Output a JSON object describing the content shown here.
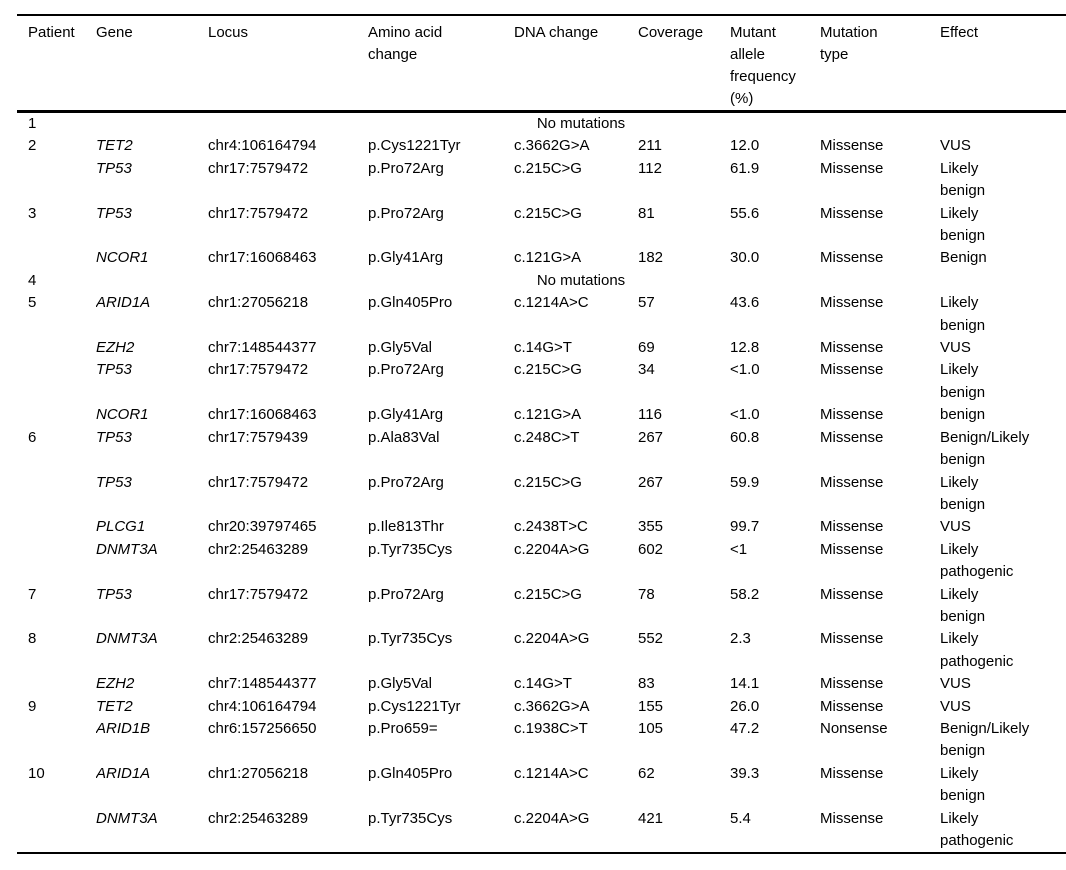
{
  "table": {
    "columns": [
      {
        "key": "patient",
        "label": "Patient"
      },
      {
        "key": "gene",
        "label": "Gene"
      },
      {
        "key": "locus",
        "label": "Locus"
      },
      {
        "key": "amino_acid_change",
        "label": "Amino acid\nchange"
      },
      {
        "key": "dna_change",
        "label": "DNA change"
      },
      {
        "key": "coverage",
        "label": "Coverage"
      },
      {
        "key": "mutant_allele_frequency",
        "label": "Mutant\nallele\nfrequency\n(%)"
      },
      {
        "key": "mutation_type",
        "label": "Mutation\ntype"
      },
      {
        "key": "effect",
        "label": "Effect"
      }
    ],
    "rows": [
      {
        "patient": "1",
        "no_mutations": "No mutations"
      },
      {
        "patient": "2",
        "gene": "TET2",
        "locus": "chr4:106164794",
        "amino_acid_change": "p.Cys1221Tyr",
        "dna_change": "c.3662G>A",
        "coverage": "211",
        "mutant_allele_frequency": "12.0",
        "mutation_type": "Missense",
        "effect": "VUS"
      },
      {
        "patient": "",
        "gene": "TP53",
        "locus": "chr17:7579472",
        "amino_acid_change": "p.Pro72Arg",
        "dna_change": "c.215C>G",
        "coverage": "112",
        "mutant_allele_frequency": "61.9",
        "mutation_type": "Missense",
        "effect": "Likely\nbenign"
      },
      {
        "patient": "3",
        "gene": "TP53",
        "locus": "chr17:7579472",
        "amino_acid_change": "p.Pro72Arg",
        "dna_change": "c.215C>G",
        "coverage": "81",
        "mutant_allele_frequency": "55.6",
        "mutation_type": "Missense",
        "effect": "Likely\nbenign"
      },
      {
        "patient": "",
        "gene": "NCOR1",
        "locus": "chr17:16068463",
        "amino_acid_change": "p.Gly41Arg",
        "dna_change": "c.121G>A",
        "coverage": "182",
        "mutant_allele_frequency": "30.0",
        "mutation_type": "Missense",
        "effect": "Benign"
      },
      {
        "patient": "4",
        "no_mutations": "No mutations"
      },
      {
        "patient": "5",
        "gene": "ARID1A",
        "locus": "chr1:27056218",
        "amino_acid_change": "p.Gln405Pro",
        "dna_change": "c.1214A>C",
        "coverage": "57",
        "mutant_allele_frequency": "43.6",
        "mutation_type": "Missense",
        "effect": "Likely\nbenign"
      },
      {
        "patient": "",
        "gene": "EZH2",
        "locus": "chr7:148544377",
        "amino_acid_change": "p.Gly5Val",
        "dna_change": "c.14G>T",
        "coverage": "69",
        "mutant_allele_frequency": "12.8",
        "mutation_type": "Missense",
        "effect": "VUS"
      },
      {
        "patient": "",
        "gene": "TP53",
        "locus": "chr17:7579472",
        "amino_acid_change": "p.Pro72Arg",
        "dna_change": "c.215C>G",
        "coverage": "34",
        "mutant_allele_frequency": "<1.0",
        "mutation_type": "Missense",
        "effect": "Likely\nbenign"
      },
      {
        "patient": "",
        "gene": "NCOR1",
        "locus": "chr17:16068463",
        "amino_acid_change": "p.Gly41Arg",
        "dna_change": "c.121G>A",
        "coverage": "116",
        "mutant_allele_frequency": "<1.0",
        "mutation_type": "Missense",
        "effect": "benign"
      },
      {
        "patient": "6",
        "gene": "TP53",
        "locus": "chr17:7579439",
        "amino_acid_change": "p.Ala83Val",
        "dna_change": "c.248C>T",
        "coverage": "267",
        "mutant_allele_frequency": "60.8",
        "mutation_type": "Missense",
        "effect": "Benign/Likely\nbenign"
      },
      {
        "patient": "",
        "gene": "TP53",
        "locus": "chr17:7579472",
        "amino_acid_change": "p.Pro72Arg",
        "dna_change": "c.215C>G",
        "coverage": "267",
        "mutant_allele_frequency": "59.9",
        "mutation_type": "Missense",
        "effect": "Likely\nbenign"
      },
      {
        "patient": "",
        "gene": "PLCG1",
        "locus": "chr20:39797465",
        "amino_acid_change": "p.Ile813Thr",
        "dna_change": "c.2438T>C",
        "coverage": "355",
        "mutant_allele_frequency": "99.7",
        "mutation_type": "Missense",
        "effect": "VUS"
      },
      {
        "patient": "",
        "gene": "DNMT3A",
        "locus": "chr2:25463289",
        "amino_acid_change": "p.Tyr735Cys",
        "dna_change": "c.2204A>G",
        "coverage": "602",
        "mutant_allele_frequency": "<1",
        "mutation_type": "Missense",
        "effect": "Likely\npathogenic"
      },
      {
        "patient": "7",
        "gene": "TP53",
        "locus": "chr17:7579472",
        "amino_acid_change": "p.Pro72Arg",
        "dna_change": "c.215C>G",
        "coverage": "78",
        "mutant_allele_frequency": "58.2",
        "mutation_type": "Missense",
        "effect": "Likely\nbenign"
      },
      {
        "patient": "8",
        "gene": "DNMT3A",
        "locus": "chr2:25463289",
        "amino_acid_change": "p.Tyr735Cys",
        "dna_change": "c.2204A>G",
        "coverage": "552",
        "mutant_allele_frequency": "2.3",
        "mutation_type": "Missense",
        "effect": "Likely\npathogenic"
      },
      {
        "patient": "",
        "gene": "EZH2",
        "locus": "chr7:148544377",
        "amino_acid_change": "p.Gly5Val",
        "dna_change": "c.14G>T",
        "coverage": "83",
        "mutant_allele_frequency": "14.1",
        "mutation_type": "Missense",
        "effect": "VUS"
      },
      {
        "patient": "9",
        "gene": "TET2",
        "locus": "chr4:106164794",
        "amino_acid_change": "p.Cys1221Tyr",
        "dna_change": "c.3662G>A",
        "coverage": "155",
        "mutant_allele_frequency": "26.0",
        "mutation_type": "Missense",
        "effect": "VUS"
      },
      {
        "patient": "",
        "gene": "ARID1B",
        "locus": "chr6:157256650",
        "amino_acid_change": "p.Pro659=",
        "dna_change": "c.1938C>T",
        "coverage": "105",
        "mutant_allele_frequency": "47.2",
        "mutation_type": "Nonsense",
        "effect": "Benign/Likely\nbenign"
      },
      {
        "patient": "10",
        "gene": "ARID1A",
        "locus": "chr1:27056218",
        "amino_acid_change": "p.Gln405Pro",
        "dna_change": "c.1214A>C",
        "coverage": "62",
        "mutant_allele_frequency": "39.3",
        "mutation_type": "Missense",
        "effect": "Likely\nbenign"
      },
      {
        "patient": "",
        "gene": "DNMT3A",
        "locus": "chr2:25463289",
        "amino_acid_change": "p.Tyr735Cys",
        "dna_change": "c.2204A>G",
        "coverage": "421",
        "mutant_allele_frequency": "5.4",
        "mutation_type": "Missense",
        "effect": "Likely\npathogenic"
      }
    ]
  }
}
